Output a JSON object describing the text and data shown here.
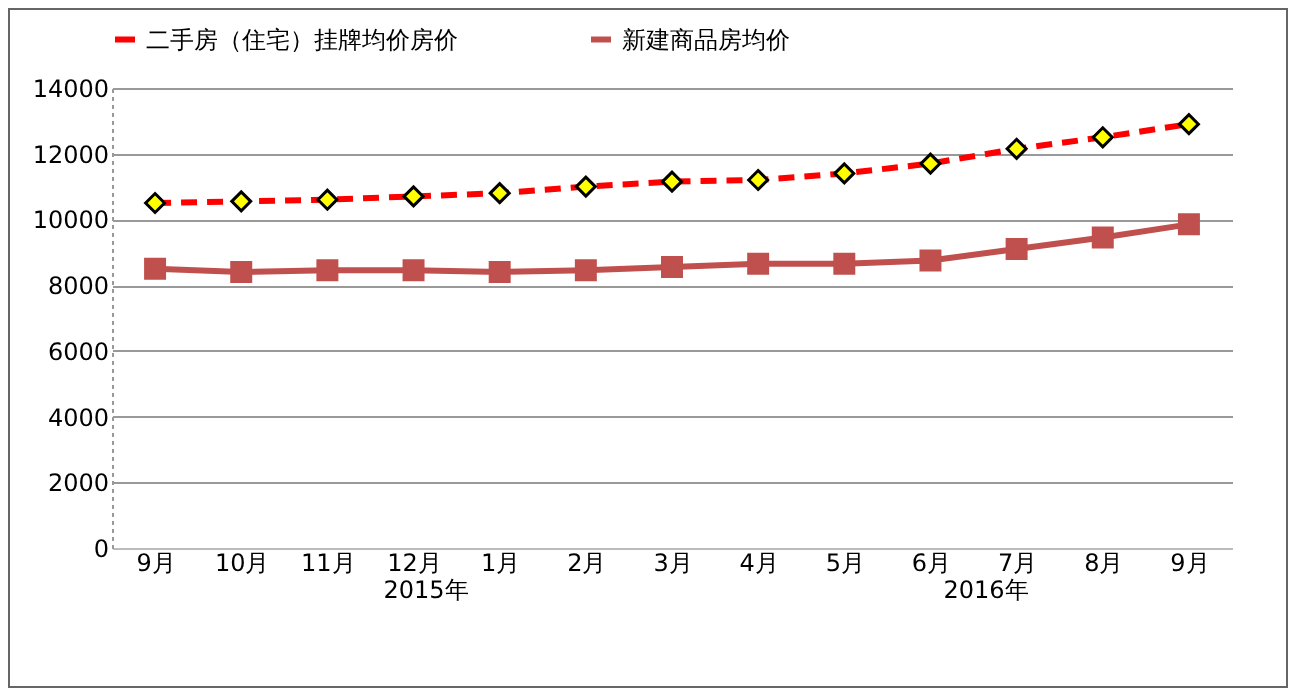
{
  "chart_data": {
    "type": "line",
    "categories": [
      "9月",
      "10月",
      "11月",
      "12月",
      "1月",
      "2月",
      "3月",
      "4月",
      "5月",
      "6月",
      "7月",
      "8月",
      "9月"
    ],
    "series": [
      {
        "name": "二手房（住宅）挂牌均价房价",
        "color": "#ff0000",
        "marker": "diamond",
        "line_style": "dashed",
        "values": [
          10500,
          10550,
          10600,
          10700,
          10800,
          11000,
          11150,
          11200,
          11400,
          11700,
          12150,
          12500,
          12900
        ]
      },
      {
        "name": "新建商品房均价",
        "color": "#c0504d",
        "marker": "square",
        "line_style": "solid",
        "values": [
          8500,
          8400,
          8450,
          8450,
          8400,
          8450,
          8550,
          8650,
          8650,
          8750,
          9100,
          9450,
          9850
        ]
      }
    ],
    "ylim": [
      0,
      14000
    ],
    "yticks": [
      0,
      2000,
      4000,
      6000,
      8000,
      10000,
      12000,
      14000
    ],
    "grid": "y",
    "legend": "top",
    "annotations": [
      "2015年",
      "2016年"
    ]
  }
}
